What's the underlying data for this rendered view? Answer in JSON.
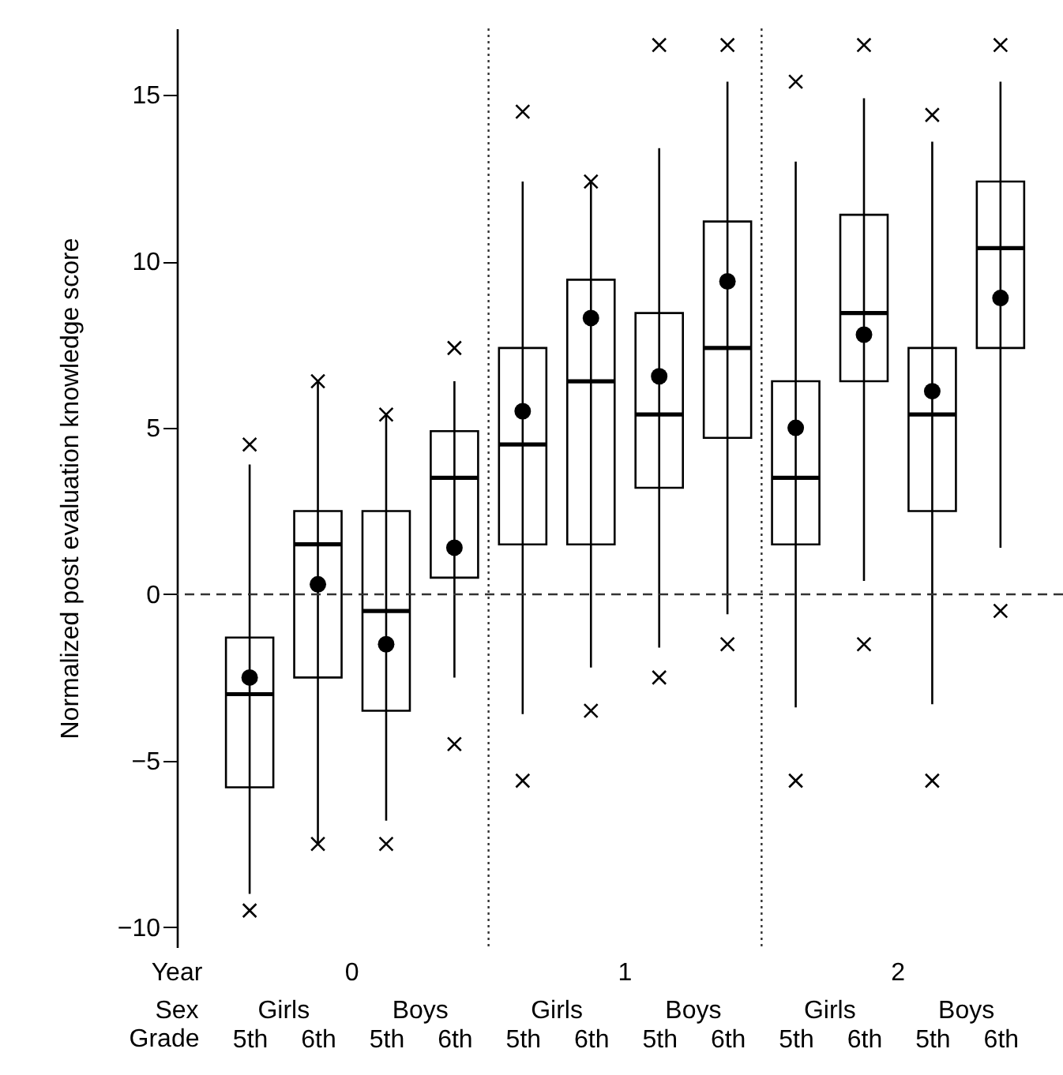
{
  "chart_data": {
    "type": "box",
    "ylabel": "Normalized post evaluation knowledge score",
    "categories": [
      "5th",
      "6th",
      "5th",
      "6th",
      "5th",
      "6th",
      "5th",
      "6th",
      "5th",
      "6th",
      "5th",
      "6th"
    ],
    "ylim": [
      -10.6,
      17
    ],
    "yticks": [
      -10,
      -5,
      0,
      5,
      10,
      15
    ],
    "boxes": [
      {
        "low": -9.0,
        "q1": -5.8,
        "median": -3.0,
        "q3": -1.3,
        "high": 3.9,
        "mean": -2.5,
        "outliers": [
          4.5,
          -9.5
        ]
      },
      {
        "low": -7.5,
        "q1": -2.5,
        "median": 1.5,
        "q3": 2.5,
        "high": 6.4,
        "mean": 0.3,
        "outliers": [
          6.4,
          -7.5
        ]
      },
      {
        "low": -6.8,
        "q1": -3.5,
        "median": -0.5,
        "q3": 2.5,
        "high": 5.4,
        "mean": -1.5,
        "outliers": [
          5.4,
          -7.5
        ]
      },
      {
        "low": -2.5,
        "q1": 0.5,
        "median": 3.5,
        "q3": 4.9,
        "high": 6.4,
        "mean": 1.4,
        "outliers": [
          7.4,
          -4.5
        ]
      },
      {
        "low": -3.6,
        "q1": 1.5,
        "median": 4.5,
        "q3": 7.4,
        "high": 12.4,
        "mean": 5.5,
        "outliers": [
          14.5,
          -5.6
        ]
      },
      {
        "low": -2.2,
        "q1": 1.5,
        "median": 6.4,
        "q3": 9.45,
        "high": 12.4,
        "mean": 8.3,
        "outliers": [
          12.4,
          -3.5
        ]
      },
      {
        "low": -1.6,
        "q1": 3.2,
        "median": 5.4,
        "q3": 8.45,
        "high": 13.4,
        "mean": 6.55,
        "outliers": [
          16.5,
          -2.5
        ]
      },
      {
        "low": -0.6,
        "q1": 4.7,
        "median": 7.4,
        "q3": 11.2,
        "high": 15.4,
        "mean": 9.4,
        "outliers": [
          16.5,
          -1.5
        ]
      },
      {
        "low": -3.4,
        "q1": 1.5,
        "median": 3.5,
        "q3": 6.4,
        "high": 13.0,
        "mean": 5.0,
        "outliers": [
          15.4,
          -5.6
        ]
      },
      {
        "low": 0.4,
        "q1": 6.4,
        "median": 8.45,
        "q3": 11.4,
        "high": 14.9,
        "mean": 7.8,
        "outliers": [
          16.5,
          -1.5
        ]
      },
      {
        "low": -3.3,
        "q1": 2.5,
        "median": 5.4,
        "q3": 7.4,
        "high": 13.6,
        "mean": 6.1,
        "outliers": [
          14.4,
          -5.6
        ]
      },
      {
        "low": 1.4,
        "q1": 7.4,
        "median": 10.4,
        "q3": 12.4,
        "high": 15.4,
        "mean": 8.9,
        "outliers": [
          16.5,
          -0.5
        ]
      }
    ],
    "ref_lines": [
      {
        "axis": "y",
        "value": 0,
        "line_style": "dashed"
      }
    ],
    "annotations": [
      "Year",
      "0",
      "1",
      "2",
      "Sex",
      "Girls",
      "Boys",
      "Girls",
      "Boys",
      "Girls",
      "Boys",
      "Grade"
    ],
    "grid": false
  }
}
